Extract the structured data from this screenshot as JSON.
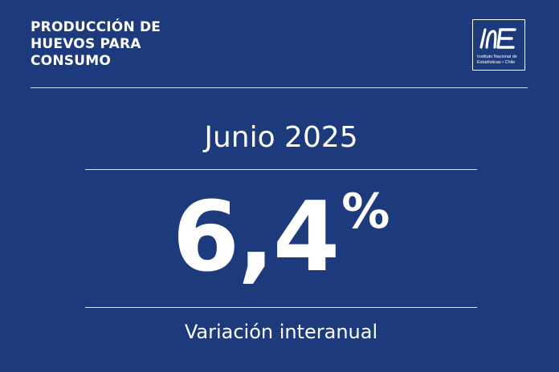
{
  "header": {
    "title_lines": [
      "PRODUCCIÓN DE",
      "HUEVOS PARA",
      "CONSUMO"
    ]
  },
  "logo": {
    "mark": "INE",
    "text_lines": [
      "Instituto Nacional de",
      "Estadísticas • Chile"
    ]
  },
  "indicator": {
    "period": "Junio 2025",
    "value": "6,4",
    "unit": "%",
    "caption": "Variación interanual"
  },
  "colors": {
    "background": "#1d3a7c",
    "text": "#ffffff",
    "divider": "#dfe6f2"
  }
}
